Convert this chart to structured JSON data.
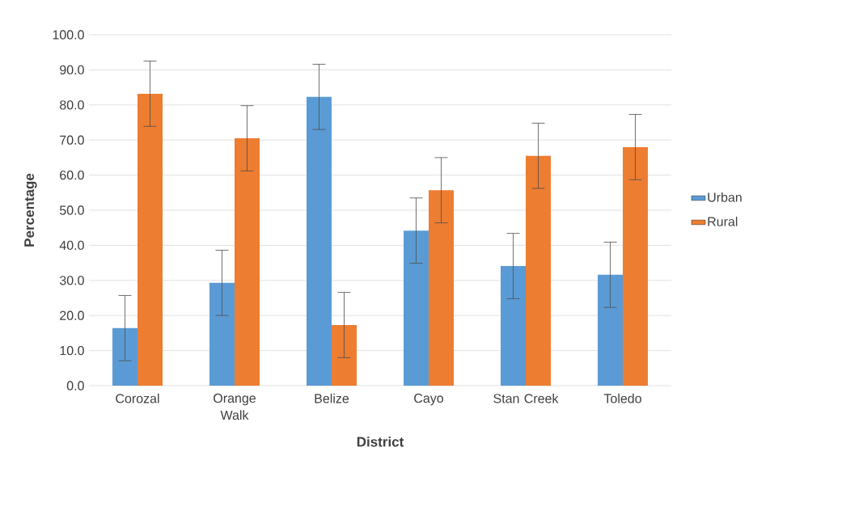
{
  "chart_data": {
    "type": "bar",
    "xlabel": "District",
    "ylabel": "Percentage",
    "categories": [
      "Corozal",
      "Orange Walk",
      "Belize",
      "Cayo",
      "Stan Creek",
      "Toledo"
    ],
    "series": [
      {
        "name": "Urban",
        "color": "#5b9bd5",
        "values": [
          16.4,
          29.3,
          82.3,
          44.2,
          34.1,
          31.6
        ],
        "errors": [
          9.3,
          9.3,
          9.3,
          9.3,
          9.3,
          9.3
        ]
      },
      {
        "name": "Rural",
        "color": "#ed7d31",
        "values": [
          83.2,
          70.5,
          17.3,
          55.7,
          65.5,
          68.0
        ],
        "errors": [
          9.3,
          9.3,
          9.3,
          9.3,
          9.3,
          9.3
        ]
      }
    ],
    "ylim": [
      0,
      100
    ],
    "yticks": [
      {
        "value": 0,
        "label": "0.0"
      },
      {
        "value": 10,
        "label": "10.0"
      },
      {
        "value": 20,
        "label": "20.0"
      },
      {
        "value": 30,
        "label": "30.0"
      },
      {
        "value": 40,
        "label": "40.0"
      },
      {
        "value": 50,
        "label": "50.0"
      },
      {
        "value": 60,
        "label": "60.0"
      },
      {
        "value": 70,
        "label": "70.0"
      },
      {
        "value": 80,
        "label": "80.0"
      },
      {
        "value": 90,
        "label": "90.0"
      },
      {
        "value": 100,
        "label": "100.0"
      }
    ],
    "grid": "y",
    "legend": "right"
  }
}
